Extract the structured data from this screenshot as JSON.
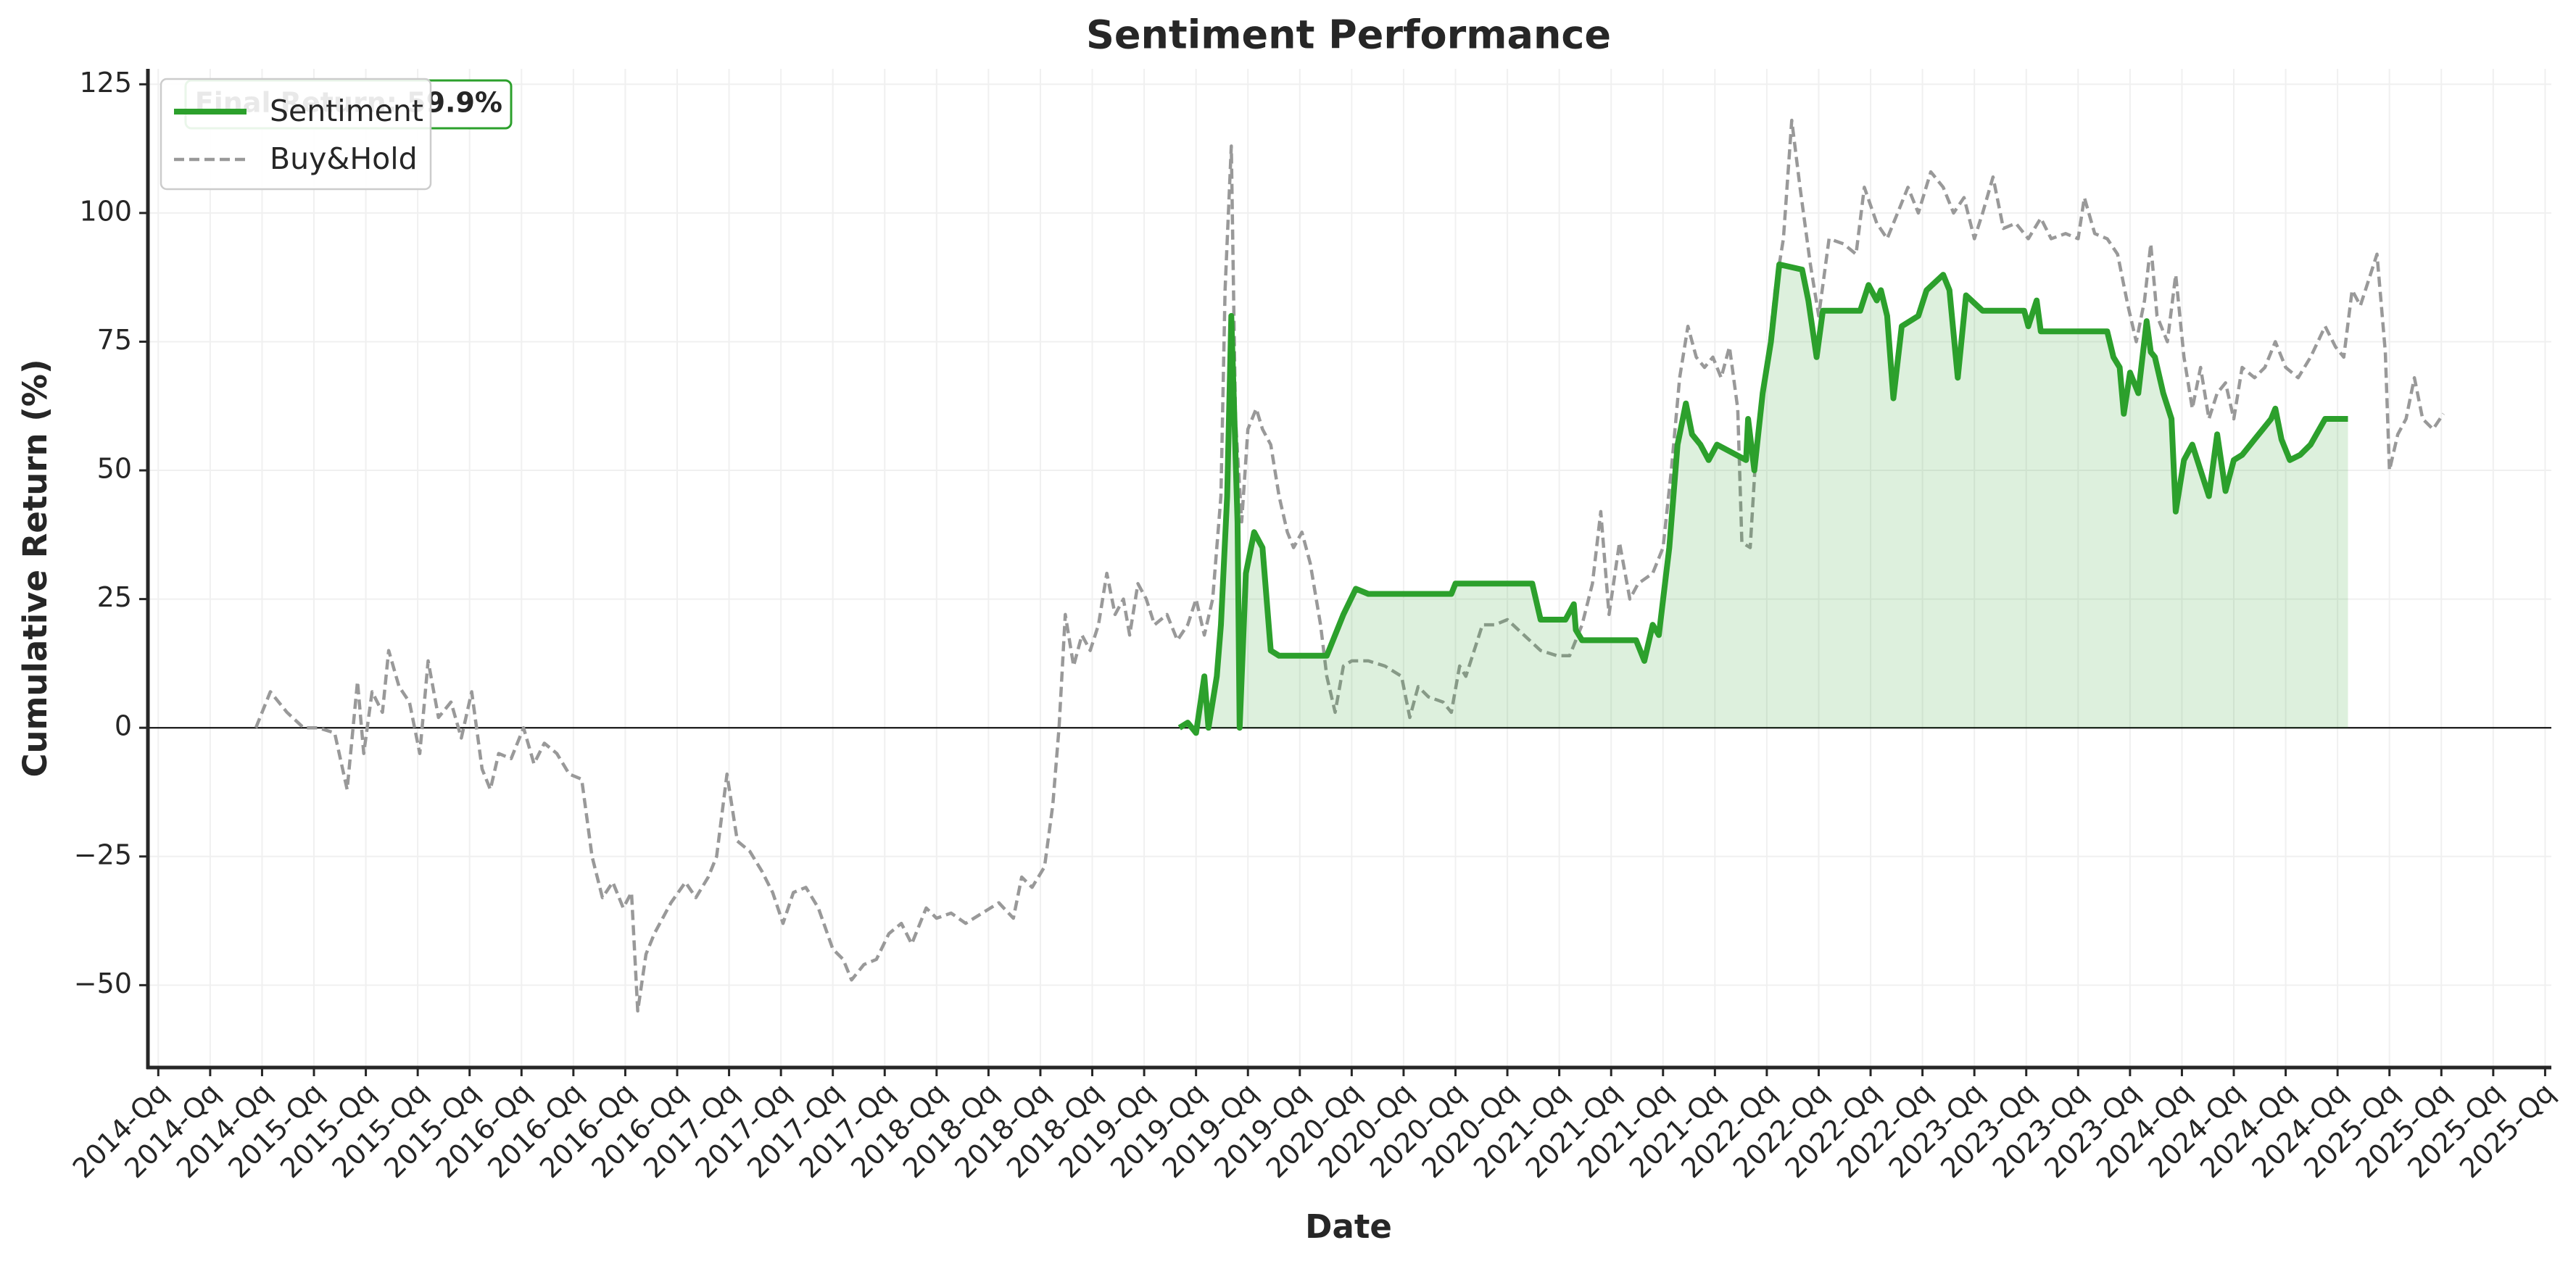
{
  "chart_data": {
    "type": "line",
    "title": "Sentiment Performance",
    "x_label": "Date",
    "y_label": "Cumulative Return (%)",
    "annotation": "Final Return: 59.9%",
    "legend": "upper left",
    "grid": true,
    "zero_line": true,
    "xlim": [
      2014.2,
      2025.78
    ],
    "ylim": [
      -66,
      128
    ],
    "yticks": [
      {
        "value": -50,
        "label": "−50"
      },
      {
        "value": -25,
        "label": "−25"
      },
      0,
      25,
      50,
      75,
      100,
      125
    ],
    "xticks": [
      {
        "value": 2014.25,
        "label": "2014-Qq"
      },
      {
        "value": 2014.5,
        "label": "2014-Qq"
      },
      {
        "value": 2014.75,
        "label": "2014-Qq"
      },
      {
        "value": 2015.0,
        "label": "2015-Qq"
      },
      {
        "value": 2015.25,
        "label": "2015-Qq"
      },
      {
        "value": 2015.5,
        "label": "2015-Qq"
      },
      {
        "value": 2015.75,
        "label": "2015-Qq"
      },
      {
        "value": 2016.0,
        "label": "2016-Qq"
      },
      {
        "value": 2016.25,
        "label": "2016-Qq"
      },
      {
        "value": 2016.5,
        "label": "2016-Qq"
      },
      {
        "value": 2016.75,
        "label": "2016-Qq"
      },
      {
        "value": 2017.0,
        "label": "2017-Qq"
      },
      {
        "value": 2017.25,
        "label": "2017-Qq"
      },
      {
        "value": 2017.5,
        "label": "2017-Qq"
      },
      {
        "value": 2017.75,
        "label": "2017-Qq"
      },
      {
        "value": 2018.0,
        "label": "2018-Qq"
      },
      {
        "value": 2018.25,
        "label": "2018-Qq"
      },
      {
        "value": 2018.5,
        "label": "2018-Qq"
      },
      {
        "value": 2018.75,
        "label": "2018-Qq"
      },
      {
        "value": 2019.0,
        "label": "2019-Qq"
      },
      {
        "value": 2019.25,
        "label": "2019-Qq"
      },
      {
        "value": 2019.5,
        "label": "2019-Qq"
      },
      {
        "value": 2019.75,
        "label": "2019-Qq"
      },
      {
        "value": 2020.0,
        "label": "2020-Qq"
      },
      {
        "value": 2020.25,
        "label": "2020-Qq"
      },
      {
        "value": 2020.5,
        "label": "2020-Qq"
      },
      {
        "value": 2020.75,
        "label": "2020-Qq"
      },
      {
        "value": 2021.0,
        "label": "2021-Qq"
      },
      {
        "value": 2021.25,
        "label": "2021-Qq"
      },
      {
        "value": 2021.5,
        "label": "2021-Qq"
      },
      {
        "value": 2021.75,
        "label": "2021-Qq"
      },
      {
        "value": 2022.0,
        "label": "2022-Qq"
      },
      {
        "value": 2022.25,
        "label": "2022-Qq"
      },
      {
        "value": 2022.5,
        "label": "2022-Qq"
      },
      {
        "value": 2022.75,
        "label": "2022-Qq"
      },
      {
        "value": 2023.0,
        "label": "2023-Qq"
      },
      {
        "value": 2023.25,
        "label": "2023-Qq"
      },
      {
        "value": 2023.5,
        "label": "2023-Qq"
      },
      {
        "value": 2023.75,
        "label": "2023-Qq"
      },
      {
        "value": 2024.0,
        "label": "2024-Qq"
      },
      {
        "value": 2024.25,
        "label": "2024-Qq"
      },
      {
        "value": 2024.5,
        "label": "2024-Qq"
      },
      {
        "value": 2024.75,
        "label": "2024-Qq"
      },
      {
        "value": 2025.0,
        "label": "2025-Qq"
      },
      {
        "value": 2025.25,
        "label": "2025-Qq"
      },
      {
        "value": 2025.5,
        "label": "2025-Qq"
      },
      {
        "value": 2025.75,
        "label": "2025-Qq"
      }
    ],
    "series": [
      {
        "name": "Sentiment",
        "color": "#2ca02c",
        "linestyle": "solid",
        "fill": true,
        "x": [
          2019.17,
          2019.21,
          2019.25,
          2019.29,
          2019.31,
          2019.35,
          2019.37,
          2019.4,
          2019.42,
          2019.45,
          2019.46,
          2019.49,
          2019.53,
          2019.57,
          2019.61,
          2019.65,
          2019.88,
          2019.96,
          2020.02,
          2020.08,
          2020.36,
          2020.48,
          2020.5,
          2020.87,
          2020.91,
          2021.03,
          2021.07,
          2021.08,
          2021.11,
          2021.37,
          2021.41,
          2021.45,
          2021.48,
          2021.53,
          2021.57,
          2021.61,
          2021.64,
          2021.68,
          2021.72,
          2021.76,
          2021.9,
          2021.91,
          2021.94,
          2021.98,
          2022.02,
          2022.06,
          2022.17,
          2022.2,
          2022.24,
          2022.27,
          2022.45,
          2022.49,
          2022.53,
          2022.55,
          2022.58,
          2022.61,
          2022.65,
          2022.73,
          2022.77,
          2022.85,
          2022.88,
          2022.92,
          2022.96,
          2023.04,
          2023.24,
          2023.26,
          2023.3,
          2023.32,
          2023.64,
          2023.67,
          2023.7,
          2023.72,
          2023.75,
          2023.79,
          2023.83,
          2023.85,
          2023.87,
          2023.91,
          2023.95,
          2023.97,
          2024.01,
          2024.05,
          2024.09,
          2024.13,
          2024.17,
          2024.21,
          2024.25,
          2024.29,
          2024.35,
          2024.39,
          2024.43,
          2024.45,
          2024.48,
          2024.52,
          2024.57,
          2024.62,
          2024.69,
          2024.74,
          2024.8
        ],
        "values": [
          0,
          1,
          -1,
          10,
          0,
          10,
          20,
          45,
          80,
          40,
          0,
          30,
          38,
          35,
          15,
          14,
          14,
          22,
          27,
          26,
          26,
          26,
          28,
          28,
          21,
          21,
          24,
          19,
          17,
          17,
          13,
          20,
          18,
          35,
          55,
          63,
          57,
          55,
          52,
          55,
          52,
          60,
          50,
          65,
          75,
          90,
          89,
          83,
          72,
          81,
          81,
          86,
          83,
          85,
          80,
          64,
          78,
          80,
          85,
          88,
          85,
          68,
          84,
          81,
          81,
          78,
          83,
          77,
          77,
          72,
          70,
          61,
          69,
          65,
          79,
          73,
          72,
          65,
          60,
          42,
          52,
          55,
          50,
          45,
          57,
          46,
          52,
          53,
          56,
          58,
          60,
          62,
          56,
          52,
          53,
          55,
          60,
          60,
          60
        ]
      },
      {
        "name": "Buy&Hold",
        "color": "#999999",
        "linestyle": "dashed",
        "fill": false,
        "x": [
          2014.72,
          2014.79,
          2014.87,
          2014.95,
          2015.02,
          2015.1,
          2015.16,
          2015.21,
          2015.24,
          2015.28,
          2015.33,
          2015.36,
          2015.41,
          2015.46,
          2015.51,
          2015.55,
          2015.6,
          2015.66,
          2015.71,
          2015.76,
          2015.81,
          2015.85,
          2015.89,
          2015.95,
          2016.01,
          2016.06,
          2016.11,
          2016.17,
          2016.23,
          2016.29,
          2016.34,
          2016.39,
          2016.44,
          2016.49,
          2016.53,
          2016.56,
          2016.6,
          2016.64,
          2016.72,
          2016.79,
          2016.84,
          2016.9,
          2016.94,
          2016.99,
          2017.04,
          2017.1,
          2017.16,
          2017.21,
          2017.26,
          2017.31,
          2017.37,
          2017.43,
          2017.5,
          2017.55,
          2017.59,
          2017.65,
          2017.71,
          2017.77,
          2017.83,
          2017.88,
          2017.95,
          2018.0,
          2018.07,
          2018.14,
          2018.22,
          2018.3,
          2018.37,
          2018.41,
          2018.46,
          2018.52,
          2018.56,
          2018.59,
          2018.62,
          2018.66,
          2018.7,
          2018.74,
          2018.78,
          2018.82,
          2018.86,
          2018.9,
          2018.93,
          2018.97,
          2019.01,
          2019.05,
          2019.11,
          2019.16,
          2019.21,
          2019.25,
          2019.29,
          2019.33,
          2019.37,
          2019.39,
          2019.42,
          2019.44,
          2019.47,
          2019.5,
          2019.54,
          2019.57,
          2019.61,
          2019.65,
          2019.69,
          2019.72,
          2019.76,
          2019.8,
          2019.85,
          2019.88,
          2019.92,
          2019.96,
          2020.0,
          2020.08,
          2020.16,
          2020.24,
          2020.28,
          2020.32,
          2020.37,
          2020.44,
          2020.48,
          2020.52,
          2020.55,
          2020.59,
          2020.63,
          2020.69,
          2020.75,
          2020.83,
          2020.91,
          2020.99,
          2021.05,
          2021.11,
          2021.16,
          2021.2,
          2021.24,
          2021.29,
          2021.34,
          2021.38,
          2021.45,
          2021.5,
          2021.54,
          2021.58,
          2021.62,
          2021.66,
          2021.7,
          2021.74,
          2021.78,
          2021.82,
          2021.86,
          2021.88,
          2021.92,
          2021.95,
          2022.0,
          2022.04,
          2022.08,
          2022.12,
          2022.16,
          2022.21,
          2022.25,
          2022.3,
          2022.37,
          2022.43,
          2022.47,
          2022.53,
          2022.58,
          2022.63,
          2022.68,
          2022.73,
          2022.79,
          2022.85,
          2022.9,
          2022.95,
          2023.0,
          2023.04,
          2023.09,
          2023.14,
          2023.2,
          2023.26,
          2023.32,
          2023.37,
          2023.44,
          2023.5,
          2023.53,
          2023.58,
          2023.64,
          2023.69,
          2023.74,
          2023.78,
          2023.82,
          2023.85,
          2023.88,
          2023.93,
          2023.97,
          2024.01,
          2024.05,
          2024.09,
          2024.13,
          2024.17,
          2024.21,
          2024.25,
          2024.29,
          2024.35,
          2024.4,
          2024.45,
          2024.5,
          2024.56,
          2024.62,
          2024.69,
          2024.74,
          2024.78,
          2024.82,
          2024.86,
          2024.9,
          2024.94,
          2024.98,
          2025.0,
          2025.04,
          2025.08,
          2025.12,
          2025.16,
          2025.21,
          2025.26
        ],
        "values": [
          0,
          7,
          3,
          0,
          0,
          -1,
          -12,
          9,
          -5,
          7,
          3,
          15,
          8,
          5,
          -5,
          13,
          2,
          5,
          -2,
          7,
          -8,
          -12,
          -5,
          -6,
          0,
          -7,
          -3,
          -5,
          -9,
          -10,
          -25,
          -33,
          -30,
          -35,
          -32,
          -55,
          -44,
          -40,
          -34,
          -30,
          -33,
          -29,
          -25,
          -9,
          -22,
          -24,
          -28,
          -32,
          -38,
          -32,
          -31,
          -35,
          -43,
          -45,
          -49,
          -46,
          -45,
          -40,
          -38,
          -42,
          -35,
          -37,
          -36,
          -38,
          -36,
          -34,
          -37,
          -29,
          -31,
          -27,
          -15,
          0,
          22,
          12,
          18,
          15,
          20,
          30,
          22,
          25,
          18,
          28,
          25,
          20,
          22,
          17,
          20,
          25,
          18,
          25,
          45,
          85,
          113,
          60,
          40,
          58,
          62,
          58,
          55,
          45,
          38,
          35,
          38,
          32,
          20,
          10,
          3,
          12,
          13,
          13,
          12,
          10,
          2,
          8,
          6,
          5,
          3,
          12,
          10,
          15,
          20,
          20,
          21,
          18,
          15,
          14,
          14,
          20,
          28,
          42,
          22,
          36,
          25,
          28,
          30,
          35,
          50,
          68,
          78,
          72,
          70,
          72,
          68,
          74,
          62,
          36,
          35,
          55,
          70,
          85,
          95,
          118,
          105,
          90,
          80,
          95,
          94,
          92,
          105,
          98,
          95,
          100,
          105,
          100,
          108,
          105,
          100,
          103,
          95,
          100,
          107,
          97,
          98,
          95,
          99,
          95,
          96,
          95,
          103,
          96,
          95,
          92,
          82,
          75,
          83,
          94,
          80,
          75,
          88,
          72,
          62,
          70,
          60,
          65,
          67,
          60,
          70,
          68,
          70,
          75,
          70,
          68,
          72,
          78,
          74,
          72,
          85,
          82,
          87,
          92,
          73,
          50,
          57,
          60,
          68,
          60,
          58,
          61
        ]
      }
    ]
  }
}
